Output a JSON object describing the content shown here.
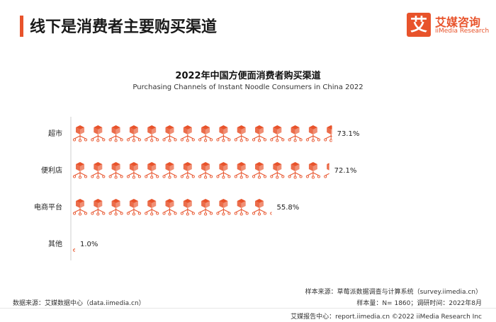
{
  "header": {
    "title": "线下是消费者主要购买渠道"
  },
  "logo": {
    "mark": "艾",
    "name_cn": "艾媒咨询",
    "name_en": "iiMedia Research"
  },
  "chart_data": {
    "type": "pictograph-bar",
    "title": "2022年中国方便面消费者购买渠道",
    "subtitle": "Purchasing Channels of Instant Noodle Consumers in China 2022",
    "categories": [
      "超市",
      "便利店",
      "电商平台",
      "其他"
    ],
    "values": [
      73.1,
      72.1,
      55.8,
      1.0
    ],
    "labels": [
      "73.1%",
      "72.1%",
      "55.8%",
      "1.0%"
    ],
    "unit": "%",
    "xlim": [
      0,
      100
    ],
    "icon": "instant-noodle-box-icon",
    "icon_color": "#e8532b"
  },
  "footer": {
    "sample_note": "样本来源：草莓派数据调查与计算系统（survey.iimedia.cn）",
    "sample_info": "样本量：N= 1860；调研时间：2022年8月",
    "data_source": "数据来源：艾媒数据中心（data.iimedia.cn）",
    "copyright": "艾媒报告中心：report.iimedia.cn   ©2022  iiMedia Research  Inc"
  }
}
